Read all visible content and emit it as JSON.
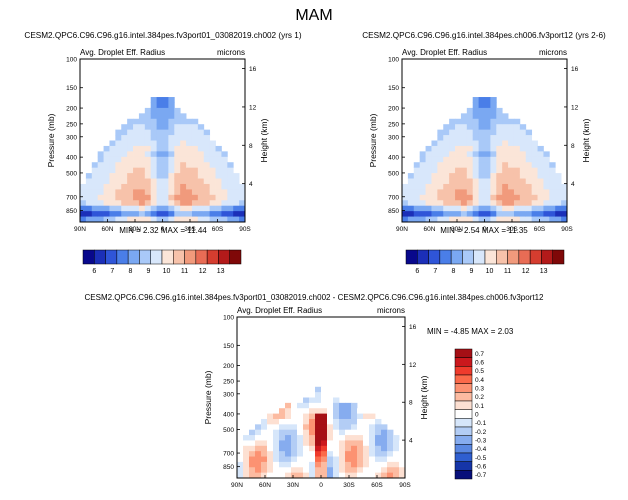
{
  "chart_data": [
    {
      "type": "heatmap",
      "page_title": "MAM",
      "title": "CESM2.QPC6.C96.C96.g16.intel.384pes.fv3port01_03082019.ch002 (yrs 1)",
      "left_label": "Avg. Droplet Eff. Radius",
      "right_label": "microns",
      "ylabel": "Pressure (mb)",
      "y2label": "Height (km)",
      "x_ticks": [
        "90N",
        "60N",
        "30N",
        "0",
        "30S",
        "60S",
        "90S"
      ],
      "y_ticks": [
        "100",
        "150",
        "200",
        "250",
        "300",
        "400",
        "500",
        "700",
        "850"
      ],
      "y_tick_values": [
        100,
        150,
        200,
        250,
        300,
        400,
        500,
        700,
        850
      ],
      "y2_ticks": [
        "16",
        "12",
        "8",
        "4"
      ],
      "y2_tick_values": [
        16,
        12,
        8,
        4
      ],
      "ylim": [
        100,
        1000
      ],
      "stats": "MIN =   2.32  MAX =  11.44",
      "colorbar_labels": [
        "6",
        "7",
        "8",
        "9",
        "10",
        "11",
        "12",
        "13"
      ],
      "colorbar_colors": [
        "#08088c",
        "#1b2fb8",
        "#2f55d8",
        "#4a7ee8",
        "#7aa8f2",
        "#a9c9f8",
        "#d8e7fb",
        "#fbe5d8",
        "#f7c2aa",
        "#f19a7c",
        "#e86c55",
        "#d53d2f",
        "#b31a1a",
        "#7f0808"
      ]
    },
    {
      "type": "heatmap",
      "title": "CESM2.QPC6.C96.C96.g16.intel.384pes.ch006.fv3port12 (yrs 2-6)",
      "left_label": "Avg. Droplet Eff. Radius",
      "right_label": "microns",
      "ylabel": "Pressure (mb)",
      "y2label": "Height (km)",
      "x_ticks": [
        "90N",
        "60N",
        "30N",
        "0",
        "30S",
        "60S",
        "90S"
      ],
      "y_ticks": [
        "100",
        "150",
        "200",
        "250",
        "300",
        "400",
        "500",
        "700",
        "850"
      ],
      "y_tick_values": [
        100,
        150,
        200,
        250,
        300,
        400,
        500,
        700,
        850
      ],
      "y2_ticks": [
        "16",
        "12",
        "8",
        "4"
      ],
      "y2_tick_values": [
        16,
        12,
        8,
        4
      ],
      "ylim": [
        100,
        1000
      ],
      "stats": "MIN =   2.54  MAX =  11.35",
      "colorbar_labels": [
        "6",
        "7",
        "8",
        "9",
        "10",
        "11",
        "12",
        "13"
      ],
      "colorbar_colors": [
        "#08088c",
        "#1b2fb8",
        "#2f55d8",
        "#4a7ee8",
        "#7aa8f2",
        "#a9c9f8",
        "#d8e7fb",
        "#fbe5d8",
        "#f7c2aa",
        "#f19a7c",
        "#e86c55",
        "#d53d2f",
        "#b31a1a",
        "#7f0808"
      ]
    },
    {
      "type": "heatmap",
      "title": "CESM2.QPC6.C96.C96.g16.intel.384pes.fv3port01_03082019.ch002 - CESM2.QPC6.C96.C96.g16.intel.384pes.ch006.fv3port12",
      "left_label": "Avg. Droplet Eff. Radius",
      "right_label": "microns",
      "ylabel": "Pressure (mb)",
      "y2label": "Height (km)",
      "x_ticks": [
        "90N",
        "60N",
        "30N",
        "0",
        "30S",
        "60S",
        "90S"
      ],
      "y_ticks": [
        "100",
        "150",
        "200",
        "250",
        "300",
        "400",
        "500",
        "700",
        "850"
      ],
      "y_tick_values": [
        100,
        150,
        200,
        250,
        300,
        400,
        500,
        700,
        850
      ],
      "y2_ticks": [
        "16",
        "12",
        "8",
        "4"
      ],
      "y2_tick_values": [
        16,
        12,
        8,
        4
      ],
      "ylim": [
        100,
        1000
      ],
      "stats": "MIN =  -4.85  MAX =   2.03",
      "colorbar_labels": [
        "0.7",
        "0.6",
        "0.5",
        "0.4",
        "0.3",
        "0.2",
        "0.1",
        "0",
        "-0.1",
        "-0.2",
        "-0.3",
        "-0.4",
        "-0.5",
        "-0.6",
        "-0.7"
      ],
      "colorbar_colors": [
        "#a50f15",
        "#cb181d",
        "#ef3b2c",
        "#fb6a4a",
        "#fc9272",
        "#fcbba1",
        "#fde0d2",
        "#ffffff",
        "#d6e6fa",
        "#b3cdf5",
        "#86acef",
        "#5a88e2",
        "#2f5fd0",
        "#1535a8",
        "#08107a"
      ]
    }
  ]
}
